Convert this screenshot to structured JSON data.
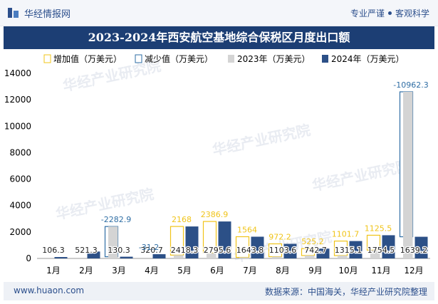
{
  "header": {
    "brand": "华经情报网",
    "tagline_left": "专业严谨",
    "tagline_right": "客观科学"
  },
  "footer": {
    "url": "www.huaon.com",
    "source": "数据来源：中国海关，华经产业研究院整理"
  },
  "watermark": "华经产业研究院",
  "colors": {
    "increase": "#f0c419",
    "decrease": "#2e6da4",
    "y2023": "#d4d4d4",
    "y2024": "#2c5087",
    "title_bg": "#1c3e74",
    "brand": "#2c4f8c"
  },
  "chart_data": {
    "type": "bar",
    "title": "2023-2024年西安航空基地综合保税区月度出口额",
    "categories": [
      "1月",
      "2月",
      "3月",
      "4月",
      "5月",
      "6月",
      "7月",
      "8月",
      "9月",
      "10月",
      "11月",
      "12月"
    ],
    "series": [
      {
        "name": "2023年（万美元）",
        "values": [
          null,
          null,
          2413.2,
          null,
          250.3,
          408.7,
          79.8,
          131.4,
          217.5,
          213.4,
          629.0,
          12601.5
        ]
      },
      {
        "name": "2024年（万美元）",
        "values": [
          106.3,
          521.3,
          130.3,
          320.7,
          2418.3,
          2795.6,
          1643.8,
          1103.6,
          742.7,
          1315.1,
          1754.5,
          1639.2
        ]
      }
    ],
    "change": {
      "increase_name": "增加值（万美元）",
      "decrease_name": "减少值（万美元）",
      "values": [
        null,
        null,
        -2282.9,
        -31.2,
        2168,
        2386.9,
        1564,
        972.2,
        525.2,
        1101.7,
        1125.5,
        -10962.3
      ]
    },
    "ylim": [
      0,
      14000
    ],
    "yticks": [
      0,
      2000,
      4000,
      6000,
      8000,
      10000,
      12000,
      14000
    ],
    "grid": false,
    "legend": "top"
  }
}
